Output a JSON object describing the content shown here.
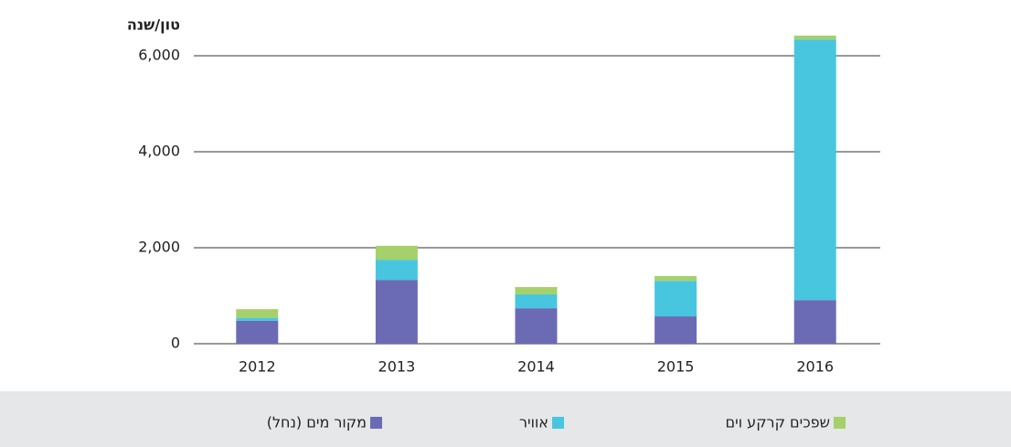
{
  "chart_data": {
    "type": "bar",
    "stacked": true,
    "y_axis_label": "טון/שנה",
    "categories": [
      "2012",
      "2013",
      "2014",
      "2015",
      "2016"
    ],
    "series": [
      {
        "name": "מקור מים (נחל)",
        "color": "#6b6bb5",
        "values": [
          480,
          1330,
          740,
          570,
          910
        ]
      },
      {
        "name": "אוויר",
        "color": "#48c6df",
        "values": [
          60,
          420,
          290,
          740,
          5430
        ]
      },
      {
        "name": "שפכים קרקע וים",
        "color": "#a6d06a",
        "values": [
          180,
          290,
          150,
          100,
          80
        ]
      }
    ],
    "ylim": [
      0,
      6400
    ],
    "yticks": [
      0,
      {
        "value": 2000,
        "label": "2,000"
      },
      {
        "value": 4000,
        "label": "4,000"
      },
      {
        "value": 6000,
        "label": "6,000"
      }
    ],
    "grid": true
  }
}
